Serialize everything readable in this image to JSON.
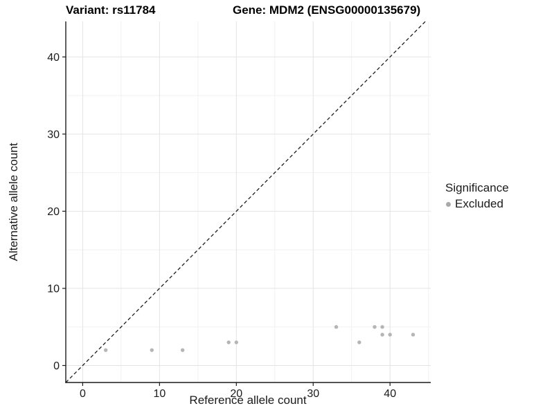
{
  "chart_data": {
    "type": "scatter",
    "title_left": "Variant: rs11784",
    "title_right": "Gene: MDM2 (ENSG00000135679)",
    "xlabel": "Reference allele count",
    "ylabel": "Alternative allele count",
    "xlim": [
      -2.2,
      45.3
    ],
    "ylim": [
      -2.2,
      44.6
    ],
    "xticks": [
      0,
      10,
      20,
      30,
      40
    ],
    "yticks": [
      0,
      10,
      20,
      30,
      40
    ],
    "minor_step": 5,
    "grid": "major+minor on white background",
    "series": [
      {
        "name": "Excluded",
        "color": "#b5b5b5",
        "points": [
          [
            3,
            2
          ],
          [
            9,
            2
          ],
          [
            13,
            2
          ],
          [
            19,
            3
          ],
          [
            20,
            3
          ],
          [
            33,
            5
          ],
          [
            36,
            3
          ],
          [
            38,
            5
          ],
          [
            39,
            5
          ],
          [
            39,
            4
          ],
          [
            40,
            4
          ],
          [
            43,
            4
          ]
        ]
      }
    ],
    "reference_line": {
      "type": "identity",
      "slope": 1,
      "intercept": 0,
      "style": "dashed",
      "color": "#1c1c1c"
    },
    "legend": {
      "title": "Significance",
      "position": "right",
      "entries": [
        {
          "label": "Excluded",
          "color": "#a9a9a9"
        }
      ]
    },
    "colors": {
      "point": "#b5b5b5",
      "grid_major": "#e3e3e3",
      "grid_minor": "#f1f1f1",
      "axis_line": "#1a1a1a",
      "text": "#1a1a1a",
      "background": "#ffffff"
    }
  }
}
